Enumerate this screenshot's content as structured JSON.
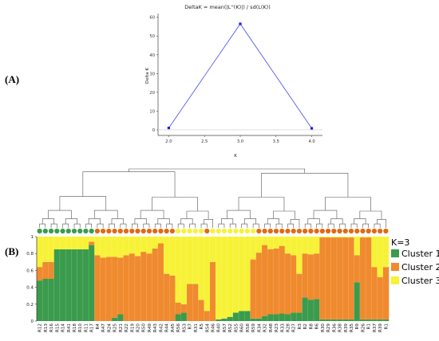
{
  "panel_labels": {
    "a": "(A)",
    "b": "(B)"
  },
  "colors": {
    "cluster1": "#3a9b4c",
    "cluster2": "#ef8a2e",
    "cluster3": "#f7f237",
    "line": "#5a5af0",
    "point": "#1f1fe0",
    "dendrogram": "#555555"
  },
  "legend": {
    "title": "K=3",
    "items": [
      {
        "label": "Cluster 1",
        "color": "#3a9b4c"
      },
      {
        "label": "Cluster 2",
        "color": "#ef8a2e"
      },
      {
        "label": "Cluster 3",
        "color": "#f7f237"
      }
    ]
  },
  "chart_data": [
    {
      "type": "line",
      "title": "DeltaK = mean(|L''(K)|) / sd(L(K))",
      "xlabel": "K",
      "ylabel": "Delta K",
      "x": [
        2.0,
        3.0,
        4.0
      ],
      "y": [
        1,
        56.5,
        0.8
      ],
      "xticks": [
        "2.0",
        "2.5",
        "3.0",
        "3.5",
        "4.0"
      ],
      "xtick_values": [
        2.0,
        2.5,
        3.0,
        3.5,
        4.0
      ],
      "yticks": [
        "0",
        "10",
        "20",
        "30",
        "40",
        "50",
        "60"
      ],
      "ytick_values": [
        0,
        10,
        20,
        30,
        40,
        50,
        60
      ],
      "xlim": [
        1.85,
        4.15
      ],
      "ylim": [
        -3,
        62
      ],
      "grid": false
    },
    {
      "type": "bar",
      "stacked": true,
      "ylim": [
        0,
        1
      ],
      "yticks": [
        "0",
        "0.2",
        "0.4",
        "0.6",
        "0.8",
        "1"
      ],
      "ytick_values": [
        0,
        0.2,
        0.4,
        0.6,
        0.8,
        1
      ],
      "categories": [
        "R12",
        "R13",
        "R16",
        "R15",
        "R14",
        "R41",
        "R18",
        "R10",
        "R11",
        "R17",
        "R4",
        "R47",
        "R24",
        "R25",
        "R21",
        "R22",
        "R19",
        "R20",
        "R50",
        "R49",
        "R43",
        "R42",
        "R44",
        "R45",
        "R56",
        "R53",
        "R7",
        "R31",
        "R5",
        "R54",
        "R46",
        "R40",
        "R57",
        "R52",
        "R55",
        "R60",
        "R58",
        "R59",
        "R34",
        "R32",
        "R48",
        "R23",
        "R33",
        "R28",
        "R27",
        "R3",
        "R2",
        "R8",
        "R6",
        "R30",
        "R29",
        "R36",
        "R38",
        "R39",
        "R35",
        "R9",
        "R26",
        "R1",
        "R37",
        "R39b",
        "R1b"
      ],
      "series": [
        {
          "name": "Cluster 1",
          "values": [
            0.48,
            0.5,
            0.5,
            0.85,
            0.85,
            0.85,
            0.85,
            0.85,
            0.85,
            0.9,
            0.0,
            0.0,
            0.0,
            0.04,
            0.08,
            0.0,
            0.0,
            0.0,
            0.0,
            0.0,
            0.0,
            0.0,
            0.0,
            0.0,
            0.08,
            0.1,
            0.0,
            0.0,
            0.0,
            0.0,
            0.0,
            0.02,
            0.03,
            0.05,
            0.1,
            0.12,
            0.12,
            0.03,
            0.03,
            0.06,
            0.08,
            0.08,
            0.09,
            0.08,
            0.1,
            0.1,
            0.28,
            0.25,
            0.26,
            0.02,
            0.02,
            0.02,
            0.02,
            0.02,
            0.02,
            0.46,
            0.02,
            0.02,
            0.02,
            0.02,
            0.02
          ]
        },
        {
          "name": "Cluster 2",
          "values": [
            0.16,
            0.2,
            0.2,
            0.0,
            0.0,
            0.0,
            0.0,
            0.0,
            0.0,
            0.04,
            0.78,
            0.75,
            0.76,
            0.72,
            0.67,
            0.78,
            0.8,
            0.77,
            0.82,
            0.8,
            0.86,
            0.92,
            0.56,
            0.54,
            0.14,
            0.1,
            0.44,
            0.44,
            0.25,
            0.12,
            0.7,
            0.0,
            0.0,
            0.0,
            0.0,
            0.0,
            0.0,
            0.7,
            0.78,
            0.84,
            0.77,
            0.78,
            0.8,
            0.72,
            0.68,
            0.46,
            0.52,
            0.54,
            0.54,
            0.97,
            0.97,
            0.97,
            0.97,
            0.97,
            0.97,
            0.32,
            0.97,
            0.97,
            0.62,
            0.5,
            0.62
          ]
        },
        {
          "name": "Cluster 3",
          "values": [
            0.36,
            0.3,
            0.3,
            0.15,
            0.15,
            0.15,
            0.15,
            0.15,
            0.15,
            0.06,
            0.22,
            0.25,
            0.24,
            0.24,
            0.25,
            0.22,
            0.2,
            0.23,
            0.18,
            0.2,
            0.14,
            0.08,
            0.44,
            0.46,
            0.78,
            0.8,
            0.56,
            0.56,
            0.75,
            0.88,
            0.3,
            0.98,
            0.97,
            0.95,
            0.9,
            0.88,
            0.88,
            0.27,
            0.19,
            0.1,
            0.15,
            0.14,
            0.11,
            0.2,
            0.22,
            0.44,
            0.2,
            0.21,
            0.2,
            0.01,
            0.01,
            0.01,
            0.01,
            0.01,
            0.01,
            0.22,
            0.01,
            0.01,
            0.36,
            0.48,
            0.36
          ]
        }
      ],
      "dots": [
        1,
        1,
        1,
        1,
        1,
        1,
        1,
        1,
        1,
        1,
        2,
        2,
        2,
        2,
        2,
        2,
        2,
        2,
        2,
        2,
        2,
        2,
        2,
        2,
        3,
        3,
        3,
        3,
        3,
        2,
        3,
        3,
        3,
        3,
        3,
        3,
        3,
        3,
        2,
        2,
        2,
        2,
        2,
        2,
        2,
        2,
        2,
        2,
        2,
        2,
        2,
        2,
        2,
        2,
        2,
        2,
        2,
        2,
        2,
        2,
        2
      ]
    }
  ]
}
